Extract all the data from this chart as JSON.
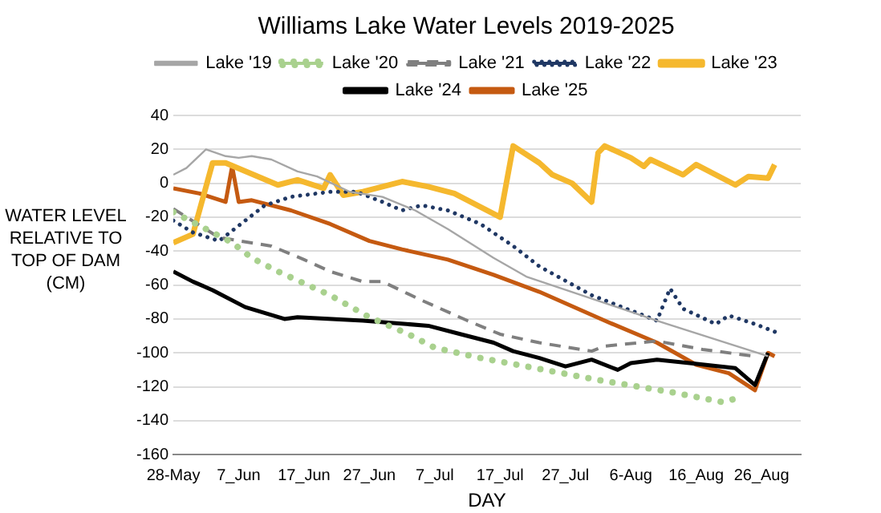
{
  "chart_data": {
    "type": "line",
    "title": "Williams Lake Water Levels 2019-2025",
    "xlabel": "DAY",
    "ylabel": "WATER LEVEL RELATIVE TO TOP OF DAM (CM)",
    "xlim": [
      "--05-28",
      "--09-01"
    ],
    "xticks": [
      {
        "value": "--05-28",
        "label": "28-May"
      },
      {
        "value": "--06-07",
        "label": "7_Jun"
      },
      {
        "value": "--06-17",
        "label": "17_Jun"
      },
      {
        "value": "--06-27",
        "label": "27_Jun"
      },
      {
        "value": "--07-07",
        "label": "7_Jul"
      },
      {
        "value": "--07-17",
        "label": "17_Jul"
      },
      {
        "value": "--07-27",
        "label": "27_Jul"
      },
      {
        "value": "--08-06",
        "label": "6-Aug"
      },
      {
        "value": "--08-16",
        "label": "16_Aug"
      },
      {
        "value": "--08-26",
        "label": "26_Aug"
      }
    ],
    "ylim": [
      -160,
      40
    ],
    "yticks": [
      -160,
      -140,
      -120,
      -100,
      -80,
      -60,
      -40,
      -20,
      0,
      20,
      40
    ],
    "grid": "y",
    "legend": "top",
    "marker": "none",
    "series": [
      {
        "name": "Lake '19",
        "color": "#a6a6a6",
        "line_style": "solid",
        "x": [
          "--05-28",
          "--05-30",
          "--06-02",
          "--06-05",
          "--06-07",
          "--06-09",
          "--06-12",
          "--06-16",
          "--06-19",
          "--06-24",
          "--06-29",
          "--07-04",
          "--07-09",
          "--07-16",
          "--07-21",
          "--08-10",
          "--08-27"
        ],
        "values": [
          5,
          9,
          20,
          16,
          15,
          16,
          14,
          7,
          4,
          -5,
          -8,
          -16,
          -27,
          -44,
          -55,
          -81,
          -102
        ]
      },
      {
        "name": "Lake '20",
        "color": "#a9d18e",
        "line_style": "dotted",
        "x": [
          "--05-28",
          "--06-02",
          "--06-06",
          "--06-09",
          "--06-13",
          "--06-17",
          "--06-21",
          "--06-27",
          "--07-03",
          "--07-07",
          "--07-14",
          "--07-21",
          "--08-01",
          "--08-12",
          "--08-20",
          "--08-22"
        ],
        "values": [
          -17,
          -27,
          -35,
          -44,
          -52,
          -59,
          -66,
          -79,
          -89,
          -97,
          -103,
          -108,
          -116,
          -123,
          -129,
          -127
        ]
      },
      {
        "name": "Lake '21",
        "color": "#7f7f7f",
        "line_style": "dashed",
        "x": [
          "--05-28",
          "--06-04",
          "--06-12",
          "--06-17",
          "--06-21",
          "--06-26",
          "--06-29",
          "--07-05",
          "--07-12",
          "--07-17",
          "--07-23",
          "--07-31",
          "--08-02",
          "--08-10",
          "--08-17",
          "--08-25"
        ],
        "values": [
          -15,
          -32,
          -37,
          -45,
          -52,
          -58,
          -58,
          -69,
          -81,
          -89,
          -94,
          -99,
          -96,
          -93,
          -98,
          -102
        ]
      },
      {
        "name": "Lake '22",
        "color": "#203864",
        "line_style": "dotted",
        "x": [
          "--05-28",
          "--05-31",
          "--06-04",
          "--06-08",
          "--06-11",
          "--06-15",
          "--06-21",
          "--06-25",
          "--06-29",
          "--07-02",
          "--07-05",
          "--07-09",
          "--07-14",
          "--07-19",
          "--07-23",
          "--07-31",
          "--08-10",
          "--08-12",
          "--08-14",
          "--08-19",
          "--08-21",
          "--08-25",
          "--08-29"
        ],
        "values": [
          -22,
          -29,
          -34,
          -22,
          -13,
          -8,
          -5,
          -5,
          -11,
          -16,
          -13,
          -16,
          -24,
          -37,
          -49,
          -66,
          -81,
          -62,
          -74,
          -83,
          -78,
          -83,
          -89
        ]
      },
      {
        "name": "Lake '23",
        "color": "#f5b82e",
        "line_style": "solid",
        "x": [
          "--05-28",
          "--05-31",
          "--06-03",
          "--06-05",
          "--06-13",
          "--06-16",
          "--06-20",
          "--06-21",
          "--06-23",
          "--06-26",
          "--07-02",
          "--07-06",
          "--07-10",
          "--07-17",
          "--07-19",
          "--07-23",
          "--07-25",
          "--07-28",
          "--07-31",
          "--08-01",
          "--08-02",
          "--08-06",
          "--08-08",
          "--08-09",
          "--08-14",
          "--08-16",
          "--08-22",
          "--08-24",
          "--08-27",
          "--08-28"
        ],
        "values": [
          -35,
          -30,
          12,
          12,
          -1,
          2,
          -3,
          5,
          -7,
          -5,
          1,
          -2,
          -6,
          -20,
          22,
          12,
          5,
          0,
          -11,
          18,
          22,
          15,
          10,
          14,
          5,
          11,
          -1,
          4,
          3,
          11
        ]
      },
      {
        "name": "Lake '24",
        "color": "#000000",
        "line_style": "solid",
        "x": [
          "--05-28",
          "--05-31",
          "--06-03",
          "--06-08",
          "--06-14",
          "--06-16",
          "--06-26",
          "--07-06",
          "--07-11",
          "--07-16",
          "--07-19",
          "--07-23",
          "--07-27",
          "--07-31",
          "--08-04",
          "--08-06",
          "--08-10",
          "--08-15",
          "--08-22",
          "--08-25",
          "--08-27"
        ],
        "values": [
          -52,
          -58,
          -63,
          -73,
          -80,
          -79,
          -81,
          -84,
          -89,
          -94,
          -99,
          -103,
          -108,
          -104,
          -110,
          -106,
          -104,
          -106,
          -109,
          -119,
          -100
        ]
      },
      {
        "name": "Lake '25",
        "color": "#c55a11",
        "line_style": "solid",
        "x": [
          "--05-28",
          "--06-01",
          "--06-05",
          "--06-06",
          "--06-07",
          "--06-09",
          "--06-15",
          "--06-21",
          "--06-27",
          "--07-02",
          "--07-09",
          "--07-16",
          "--07-23",
          "--08-02",
          "--08-10",
          "--08-16",
          "--08-21",
          "--08-25",
          "--08-27",
          "--08-28"
        ],
        "values": [
          -3,
          -6,
          -11,
          10,
          -11,
          -10,
          -16,
          -24,
          -34,
          -39,
          -45,
          -54,
          -64,
          -81,
          -94,
          -107,
          -112,
          -122,
          -100,
          -102
        ]
      }
    ]
  }
}
